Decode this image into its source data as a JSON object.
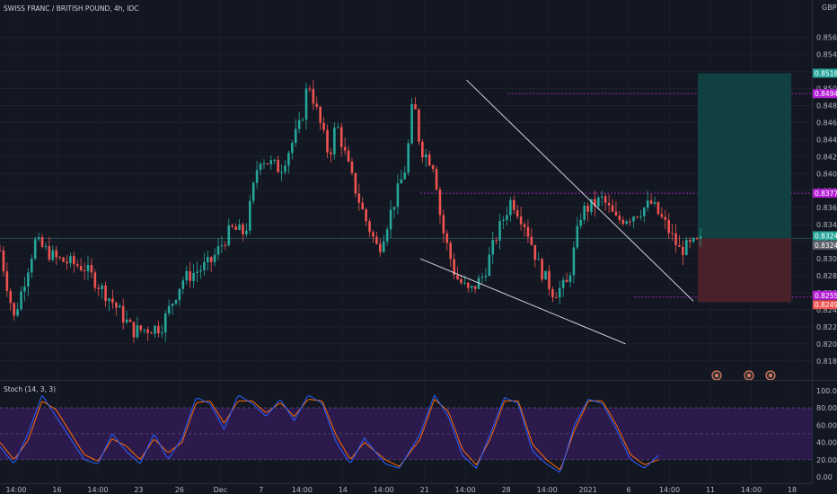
{
  "chart_data": {
    "type": "candlestick",
    "title": "SWISS FRANC / BRITISH POUND, 4h, IDC",
    "currency": "GBP",
    "price_range": [
      0.8165,
      0.8585
    ],
    "price_ticks": [
      "0.8560",
      "0.8540",
      "0.8520",
      "0.8500",
      "0.8480",
      "0.8460",
      "0.8440",
      "0.8420",
      "0.8400",
      "0.8380",
      "0.8360",
      "0.8340",
      "0.8320",
      "0.8300",
      "0.8280",
      "0.8260",
      "0.8240",
      "0.8220",
      "0.8200",
      "0.8180"
    ],
    "x_labels": [
      "14:00",
      "16",
      "14:00",
      "23",
      "26",
      "Dec",
      "7",
      "14:00",
      "14",
      "14:00",
      "21",
      "14:00",
      "28",
      "14:00",
      "2021",
      "6",
      "14:00",
      "11",
      "14:00",
      "18"
    ],
    "price_path": [
      [
        0,
        0.831
      ],
      [
        0.02,
        0.823
      ],
      [
        0.05,
        0.832
      ],
      [
        0.08,
        0.83
      ],
      [
        0.12,
        0.829
      ],
      [
        0.16,
        0.825
      ],
      [
        0.19,
        0.8215
      ],
      [
        0.23,
        0.822
      ],
      [
        0.26,
        0.8275
      ],
      [
        0.3,
        0.8295
      ],
      [
        0.33,
        0.8335
      ],
      [
        0.35,
        0.833
      ],
      [
        0.37,
        0.842
      ],
      [
        0.4,
        0.8405
      ],
      [
        0.43,
        0.846
      ],
      [
        0.44,
        0.851
      ],
      [
        0.45,
        0.848
      ],
      [
        0.47,
        0.842
      ],
      [
        0.48,
        0.846
      ],
      [
        0.5,
        0.84
      ],
      [
        0.52,
        0.835
      ],
      [
        0.54,
        0.831
      ],
      [
        0.56,
        0.836
      ],
      [
        0.58,
        0.841
      ],
      [
        0.59,
        0.849
      ],
      [
        0.6,
        0.843
      ],
      [
        0.62,
        0.841
      ],
      [
        0.63,
        0.834
      ],
      [
        0.65,
        0.828
      ],
      [
        0.67,
        0.826
      ],
      [
        0.69,
        0.828
      ],
      [
        0.71,
        0.833
      ],
      [
        0.73,
        0.837
      ],
      [
        0.75,
        0.834
      ],
      [
        0.77,
        0.829
      ],
      [
        0.79,
        0.826
      ],
      [
        0.81,
        0.827
      ],
      [
        0.83,
        0.8355
      ],
      [
        0.86,
        0.837
      ],
      [
        0.88,
        0.8345
      ],
      [
        0.9,
        0.835
      ],
      [
        0.93,
        0.8365
      ],
      [
        0.95,
        0.834
      ],
      [
        0.97,
        0.831
      ],
      [
        1.0,
        0.832
      ]
    ],
    "trendlines": [
      {
        "from": [
          0.666,
          0.851
        ],
        "to": [
          0.99,
          0.825
        ],
        "color": "#d1d4dc"
      },
      {
        "from": [
          0.6,
          0.83
        ],
        "to": [
          0.893,
          0.82
        ],
        "color": "#d1d4dc"
      }
    ],
    "dotted_levels": [
      {
        "value": 0.8494,
        "start": 0.725,
        "color": "#9c27b0"
      },
      {
        "value": 0.8377,
        "start": 0.6,
        "color": "#9c27b0"
      },
      {
        "value": 0.8255,
        "start": 0.905,
        "color": "#9c27b0"
      }
    ],
    "position": {
      "entry": 0.8324,
      "target": 0.8518,
      "stop": 0.8249,
      "profit_color": "#10403f",
      "loss_color": "#4a2129"
    },
    "price_badges": [
      {
        "label": "0.8518",
        "value": 0.8518,
        "color": "#26a69a"
      },
      {
        "label": "0.8494",
        "value": 0.8494,
        "color": "#b51fd6"
      },
      {
        "label": "0.8377",
        "value": 0.8377,
        "color": "#b51fd6"
      },
      {
        "label": "0.8324",
        "value": 0.8327,
        "color": "#26a69a"
      },
      {
        "label": "0.8324",
        "value": 0.8316,
        "color": "#5d606b"
      },
      {
        "label": "0.8255",
        "value": 0.8257,
        "color": "#b51fd6"
      },
      {
        "label": "0.8249",
        "value": 0.8246,
        "color": "#ef5350"
      }
    ],
    "event_icon_count": 3,
    "candle_up_color": "#26a69a",
    "candle_down_color": "#ef5350",
    "indicator": {
      "name": "Stoch (14, 3, 3)",
      "range": [
        0,
        105
      ],
      "ticks": [
        "100.00",
        "80.00",
        "60.00",
        "40.00",
        "20.00",
        "0.00"
      ],
      "band": [
        20,
        80
      ],
      "band_color": "#2d1a4d",
      "k_color": "#2962ff",
      "d_color": "#ff6d00",
      "k_path": [
        [
          0,
          35
        ],
        [
          0.02,
          15
        ],
        [
          0.04,
          50
        ],
        [
          0.06,
          95
        ],
        [
          0.08,
          70
        ],
        [
          0.1,
          45
        ],
        [
          0.12,
          20
        ],
        [
          0.14,
          15
        ],
        [
          0.16,
          50
        ],
        [
          0.18,
          30
        ],
        [
          0.2,
          15
        ],
        [
          0.22,
          50
        ],
        [
          0.24,
          20
        ],
        [
          0.26,
          45
        ],
        [
          0.28,
          92
        ],
        [
          0.3,
          85
        ],
        [
          0.32,
          55
        ],
        [
          0.34,
          95
        ],
        [
          0.36,
          85
        ],
        [
          0.38,
          70
        ],
        [
          0.4,
          90
        ],
        [
          0.42,
          65
        ],
        [
          0.44,
          95
        ],
        [
          0.46,
          85
        ],
        [
          0.48,
          40
        ],
        [
          0.5,
          15
        ],
        [
          0.52,
          45
        ],
        [
          0.55,
          15
        ],
        [
          0.57,
          10
        ],
        [
          0.6,
          50
        ],
        [
          0.62,
          95
        ],
        [
          0.64,
          70
        ],
        [
          0.66,
          25
        ],
        [
          0.68,
          10
        ],
        [
          0.7,
          50
        ],
        [
          0.72,
          92
        ],
        [
          0.74,
          85
        ],
        [
          0.76,
          30
        ],
        [
          0.78,
          15
        ],
        [
          0.8,
          5
        ],
        [
          0.82,
          60
        ],
        [
          0.84,
          90
        ],
        [
          0.86,
          85
        ],
        [
          0.88,
          55
        ],
        [
          0.9,
          20
        ],
        [
          0.92,
          10
        ],
        [
          0.94,
          25
        ]
      ],
      "d_path": [
        [
          0,
          40
        ],
        [
          0.02,
          20
        ],
        [
          0.04,
          42
        ],
        [
          0.06,
          88
        ],
        [
          0.08,
          78
        ],
        [
          0.1,
          52
        ],
        [
          0.12,
          26
        ],
        [
          0.14,
          18
        ],
        [
          0.16,
          44
        ],
        [
          0.18,
          36
        ],
        [
          0.2,
          20
        ],
        [
          0.22,
          44
        ],
        [
          0.24,
          28
        ],
        [
          0.26,
          40
        ],
        [
          0.28,
          86
        ],
        [
          0.3,
          88
        ],
        [
          0.32,
          62
        ],
        [
          0.34,
          88
        ],
        [
          0.36,
          88
        ],
        [
          0.38,
          74
        ],
        [
          0.4,
          86
        ],
        [
          0.42,
          70
        ],
        [
          0.44,
          90
        ],
        [
          0.46,
          88
        ],
        [
          0.48,
          48
        ],
        [
          0.5,
          20
        ],
        [
          0.52,
          40
        ],
        [
          0.55,
          20
        ],
        [
          0.57,
          12
        ],
        [
          0.6,
          44
        ],
        [
          0.62,
          90
        ],
        [
          0.64,
          76
        ],
        [
          0.66,
          32
        ],
        [
          0.68,
          14
        ],
        [
          0.7,
          44
        ],
        [
          0.72,
          88
        ],
        [
          0.74,
          88
        ],
        [
          0.76,
          38
        ],
        [
          0.78,
          20
        ],
        [
          0.8,
          8
        ],
        [
          0.82,
          54
        ],
        [
          0.84,
          88
        ],
        [
          0.86,
          88
        ],
        [
          0.88,
          60
        ],
        [
          0.9,
          26
        ],
        [
          0.92,
          14
        ],
        [
          0.94,
          20
        ]
      ]
    }
  }
}
